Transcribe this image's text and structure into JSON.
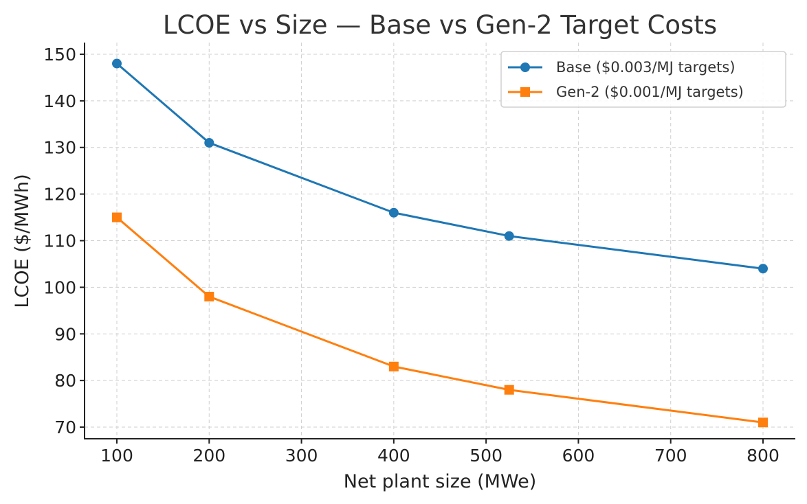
{
  "chart_data": {
    "type": "line",
    "title": "LCOE vs Size — Base vs Gen-2 Target Costs",
    "xlabel": "Net plant size (MWe)",
    "ylabel": "LCOE ($/MWh)",
    "xlim": [
      65,
      835
    ],
    "ylim": [
      67.5,
      152.5
    ],
    "xticks": [
      100,
      200,
      300,
      400,
      500,
      600,
      700,
      800
    ],
    "yticks": [
      70,
      80,
      90,
      100,
      110,
      120,
      130,
      140,
      150
    ],
    "grid": true,
    "legend_position": "top-right",
    "x": [
      100,
      200,
      400,
      525,
      800
    ],
    "series": [
      {
        "name": "Base ($0.003/MJ targets)",
        "values": [
          148,
          131,
          116,
          111,
          104
        ],
        "color": "#1f77b4",
        "marker": "circle"
      },
      {
        "name": "Gen-2 ($0.001/MJ targets)",
        "values": [
          115,
          98,
          83,
          78,
          71
        ],
        "color": "#ff7f0e",
        "marker": "square"
      }
    ]
  }
}
